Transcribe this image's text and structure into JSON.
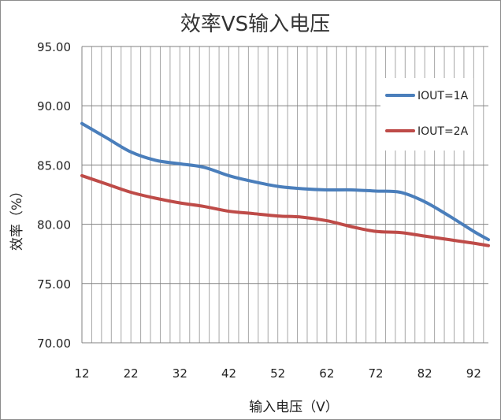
{
  "chart_data": {
    "type": "line",
    "title": "效率VS输入电压",
    "xlabel": "输入电压（V）",
    "ylabel": "效率（%）",
    "xlim": [
      12,
      95
    ],
    "ylim": [
      70,
      95
    ],
    "x_ticks": [
      12,
      22,
      32,
      42,
      52,
      62,
      72,
      82,
      92
    ],
    "y_ticks": [
      "95.00",
      "90.00",
      "85.00",
      "80.00",
      "75.00",
      "70.00"
    ],
    "grid": "vertical and horizontal",
    "legend_position": "right",
    "series": [
      {
        "name": "IOUT=1A",
        "color": "#4a7ebb",
        "points": [
          [
            12,
            88.5
          ],
          [
            17,
            87.3
          ],
          [
            22,
            86.1
          ],
          [
            27,
            85.4
          ],
          [
            32,
            85.1
          ],
          [
            37,
            84.8
          ],
          [
            42,
            84.1
          ],
          [
            47,
            83.6
          ],
          [
            52,
            83.2
          ],
          [
            57,
            83.0
          ],
          [
            62,
            82.9
          ],
          [
            67,
            82.9
          ],
          [
            72,
            82.8
          ],
          [
            77,
            82.7
          ],
          [
            82,
            81.9
          ],
          [
            87,
            80.7
          ],
          [
            92,
            79.4
          ],
          [
            95,
            78.7
          ]
        ]
      },
      {
        "name": "IOUT=2A",
        "color": "#be4b48",
        "points": [
          [
            12,
            84.1
          ],
          [
            17,
            83.4
          ],
          [
            22,
            82.7
          ],
          [
            27,
            82.2
          ],
          [
            32,
            81.8
          ],
          [
            37,
            81.5
          ],
          [
            42,
            81.1
          ],
          [
            47,
            80.9
          ],
          [
            52,
            80.7
          ],
          [
            57,
            80.6
          ],
          [
            62,
            80.3
          ],
          [
            67,
            79.8
          ],
          [
            72,
            79.4
          ],
          [
            77,
            79.3
          ],
          [
            82,
            79.0
          ],
          [
            87,
            78.7
          ],
          [
            92,
            78.4
          ],
          [
            95,
            78.2
          ]
        ]
      }
    ]
  }
}
